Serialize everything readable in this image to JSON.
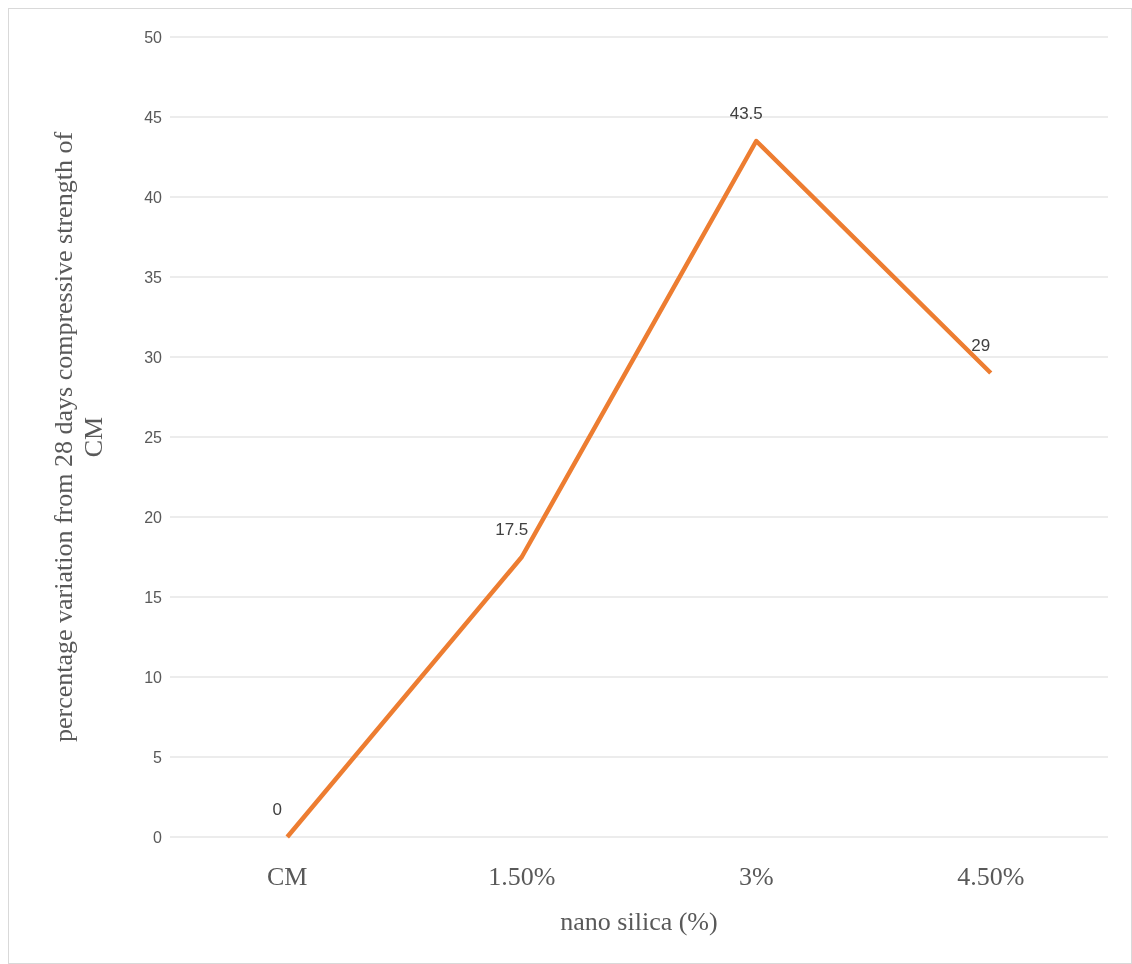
{
  "chart_data": {
    "type": "line",
    "xlabel": "nano silica (%)",
    "ylabel": "percentage variation from 28 days compressive strength of CM",
    "categories": [
      "CM",
      "1.50%",
      "3%",
      "4.50%"
    ],
    "series": [
      {
        "color": "#ed7d31",
        "values": [
          0,
          17.5,
          43.5,
          29
        ]
      }
    ],
    "ylim": [
      0,
      50
    ],
    "yticks": [
      0,
      5,
      10,
      15,
      20,
      25,
      30,
      35,
      40,
      45,
      50
    ],
    "grid": "y",
    "data_labels": true,
    "marker": "none"
  }
}
